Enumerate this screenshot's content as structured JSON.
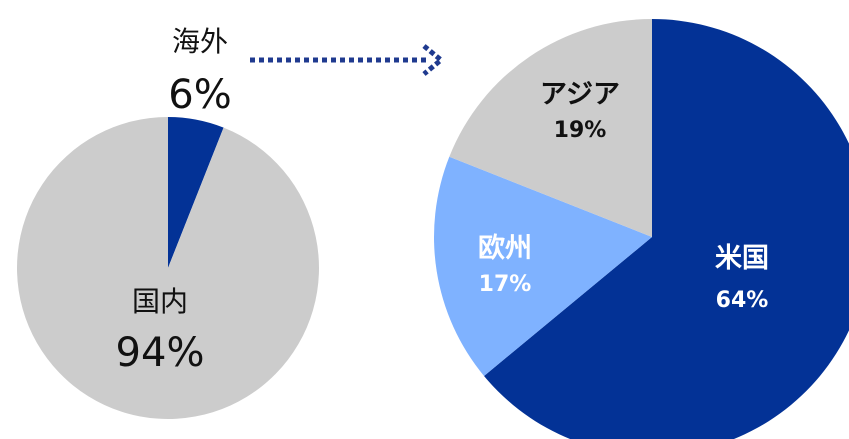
{
  "chart_data": [
    {
      "type": "pie",
      "categories": [
        "海外",
        "国内"
      ],
      "values": [
        6,
        94
      ],
      "labels": [
        "6%",
        "94%"
      ],
      "colors": [
        "#033296",
        "#cccccc"
      ],
      "start_angle": "12 o'clock, clockwise"
    },
    {
      "type": "pie",
      "categories": [
        "米国",
        "欧州",
        "アジア"
      ],
      "values": [
        64,
        17,
        19
      ],
      "labels": [
        "64%",
        "17%",
        "19%"
      ],
      "colors": [
        "#033296",
        "#7fb2ff",
        "#cccccc"
      ],
      "label_colors": [
        "#ffffff",
        "#ffffff",
        "#111111"
      ],
      "start_angle": "12 o'clock, clockwise"
    }
  ],
  "connector": {
    "style": "dotted arrow",
    "from": "海外",
    "to": "breakdown pie",
    "color": "#1f3a8f"
  }
}
